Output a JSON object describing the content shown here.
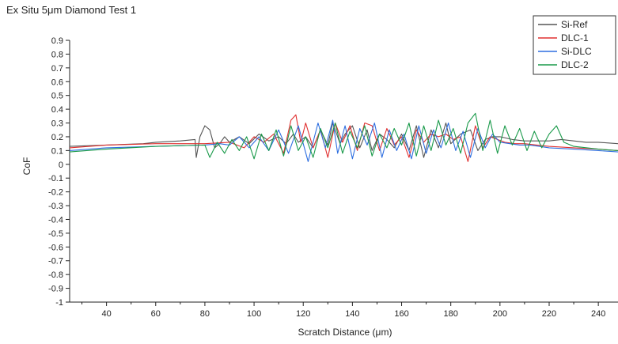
{
  "chart_data": {
    "type": "line",
    "title": "Ex Situ 5μm Diamond Test 1",
    "xlabel": "Scratch Distance (μm)",
    "ylabel": "CoF",
    "xlim": [
      25,
      248
    ],
    "ylim": [
      -1,
      0.9
    ],
    "xticks": [
      40,
      60,
      80,
      100,
      120,
      140,
      160,
      180,
      200,
      220,
      240
    ],
    "yticks": [
      0.9,
      0.8,
      0.7,
      0.6,
      0.5,
      0.4,
      0.3,
      0.2,
      0.1,
      0,
      -0.1,
      -0.2,
      -0.3,
      -0.4,
      -0.5,
      -0.6,
      -0.7,
      -0.8,
      -0.9,
      -1
    ],
    "grid": false,
    "legend_position": "top-right",
    "series": [
      {
        "name": "Si-Ref",
        "color": "#555555",
        "x": [
          25,
          40,
          55,
          60,
          70,
          76,
          76.5,
          78,
          80,
          82,
          84,
          86,
          88,
          90,
          94,
          98,
          102,
          106,
          110,
          113,
          116,
          118,
          121,
          124,
          127,
          130,
          132,
          135,
          137,
          140,
          143,
          146,
          148,
          151,
          154,
          157,
          160,
          163,
          166,
          169,
          172,
          175,
          178,
          180,
          184,
          188,
          191,
          194,
          197,
          200,
          205,
          210,
          215,
          220,
          225,
          230,
          235,
          240,
          248
        ],
        "y": [
          0.13,
          0.14,
          0.15,
          0.16,
          0.17,
          0.18,
          0.05,
          0.2,
          0.28,
          0.25,
          0.12,
          0.15,
          0.2,
          0.16,
          0.2,
          0.15,
          0.22,
          0.17,
          0.2,
          0.15,
          0.22,
          0.16,
          0.2,
          0.12,
          0.25,
          0.14,
          0.3,
          0.15,
          0.22,
          0.28,
          0.12,
          0.25,
          0.1,
          0.22,
          0.18,
          0.12,
          0.22,
          0.1,
          0.28,
          0.05,
          0.25,
          0.12,
          0.3,
          0.15,
          0.22,
          0.25,
          0.1,
          0.18,
          0.2,
          0.2,
          0.18,
          0.17,
          0.17,
          0.17,
          0.18,
          0.17,
          0.16,
          0.16,
          0.15
        ]
      },
      {
        "name": "DLC-1",
        "color": "#e03030",
        "x": [
          25,
          40,
          60,
          80,
          90,
          96,
          100,
          104,
          108,
          112,
          115,
          117,
          119,
          121,
          124,
          127,
          130,
          133,
          136,
          139,
          142,
          145,
          148,
          151,
          154,
          157,
          160,
          163,
          166,
          169,
          172,
          175,
          178,
          181,
          184,
          187,
          190,
          193,
          196,
          199,
          202,
          206,
          210,
          215,
          220,
          230,
          240,
          248
        ],
        "y": [
          0.12,
          0.14,
          0.15,
          0.15,
          0.16,
          0.12,
          0.2,
          0.16,
          0.22,
          0.08,
          0.32,
          0.36,
          0.16,
          0.3,
          0.12,
          0.25,
          0.05,
          0.3,
          0.16,
          0.28,
          0.1,
          0.3,
          0.28,
          0.1,
          0.26,
          0.14,
          0.2,
          0.05,
          0.25,
          0.16,
          0.22,
          0.2,
          0.22,
          0.18,
          0.2,
          0.02,
          0.28,
          0.12,
          0.2,
          0.18,
          0.16,
          0.15,
          0.15,
          0.14,
          0.13,
          0.12,
          0.11,
          0.1
        ]
      },
      {
        "name": "Si-DLC",
        "color": "#2f6fe0",
        "x": [
          25,
          40,
          60,
          80,
          86,
          90,
          94,
          98,
          102,
          106,
          110,
          114,
          118,
          122,
          126,
          129,
          132,
          134,
          137,
          140,
          143,
          146,
          149,
          152,
          155,
          158,
          161,
          164,
          167,
          170,
          173,
          176,
          179,
          182,
          185,
          188,
          191,
          194,
          197,
          200,
          204,
          208,
          212,
          216,
          220,
          230,
          240,
          248
        ],
        "y": [
          0.1,
          0.12,
          0.13,
          0.14,
          0.15,
          0.14,
          0.2,
          0.12,
          0.2,
          0.1,
          0.25,
          0.08,
          0.28,
          0.02,
          0.3,
          0.12,
          0.32,
          0.08,
          0.28,
          0.04,
          0.26,
          0.14,
          0.3,
          0.05,
          0.25,
          0.1,
          0.22,
          0.04,
          0.28,
          0.08,
          0.25,
          0.12,
          0.3,
          0.1,
          0.24,
          0.05,
          0.26,
          0.12,
          0.22,
          0.16,
          0.15,
          0.14,
          0.14,
          0.13,
          0.12,
          0.11,
          0.1,
          0.09
        ]
      },
      {
        "name": "DLC-2",
        "color": "#1a9a4a",
        "x": [
          25,
          40,
          60,
          80,
          82,
          85,
          88,
          91,
          94,
          97,
          100,
          103,
          106,
          109,
          112,
          115,
          118,
          121,
          124,
          127,
          130,
          133,
          136,
          139,
          142,
          145,
          148,
          151,
          154,
          157,
          160,
          163,
          166,
          169,
          172,
          175,
          178,
          181,
          184,
          187,
          190,
          193,
          196,
          199,
          202,
          205,
          208,
          211,
          214,
          217,
          220,
          223,
          226,
          230,
          240,
          248
        ],
        "y": [
          0.09,
          0.11,
          0.13,
          0.14,
          0.05,
          0.16,
          0.08,
          0.18,
          0.1,
          0.2,
          0.04,
          0.22,
          0.1,
          0.25,
          0.06,
          0.28,
          0.1,
          0.2,
          0.05,
          0.26,
          0.12,
          0.3,
          0.08,
          0.24,
          0.12,
          0.28,
          0.06,
          0.22,
          0.12,
          0.26,
          0.14,
          0.3,
          0.06,
          0.28,
          0.1,
          0.32,
          0.14,
          0.26,
          0.08,
          0.3,
          0.37,
          0.1,
          0.32,
          0.08,
          0.28,
          0.14,
          0.26,
          0.1,
          0.24,
          0.12,
          0.22,
          0.28,
          0.16,
          0.13,
          0.11,
          0.1
        ]
      }
    ]
  }
}
